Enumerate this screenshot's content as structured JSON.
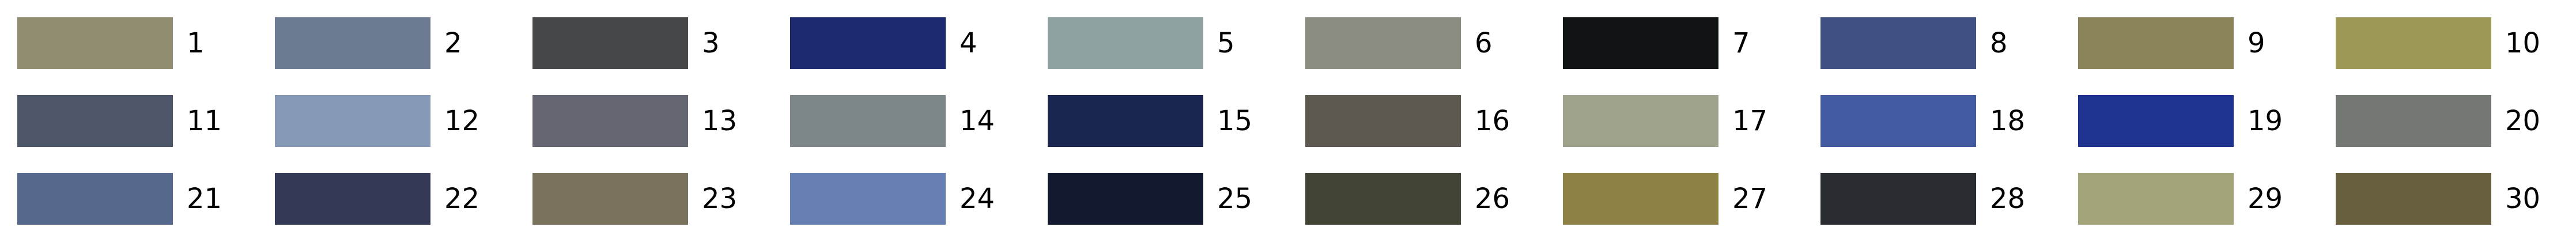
{
  "swatches": [
    {
      "label": "1",
      "color": "#908d70"
    },
    {
      "label": "2",
      "color": "#6c7a92"
    },
    {
      "label": "3",
      "color": "#464749"
    },
    {
      "label": "4",
      "color": "#1c2b6f"
    },
    {
      "label": "5",
      "color": "#8fa0a1"
    },
    {
      "label": "6",
      "color": "#8c8d81"
    },
    {
      "label": "7",
      "color": "#101415"
    },
    {
      "label": "8",
      "color": "#3f5082"
    },
    {
      "label": "9",
      "color": "#8b845b"
    },
    {
      "label": "10",
      "color": "#9e9856"
    },
    {
      "label": "11",
      "color": "#4c5668"
    },
    {
      "label": "12",
      "color": "#869ab7"
    },
    {
      "label": "13",
      "color": "#646671"
    },
    {
      "label": "14",
      "color": "#7d8688"
    },
    {
      "label": "15",
      "color": "#1b2650"
    },
    {
      "label": "16",
      "color": "#5e5950"
    },
    {
      "label": "17",
      "color": "#9fa38b"
    },
    {
      "label": "18",
      "color": "#435ba3"
    },
    {
      "label": "19",
      "color": "#1e3290"
    },
    {
      "label": "20",
      "color": "#747873"
    },
    {
      "label": "21",
      "color": "#56698c"
    },
    {
      "label": "22",
      "color": "#343a55"
    },
    {
      "label": "23",
      "color": "#79735e"
    },
    {
      "label": "24",
      "color": "#657fb2"
    },
    {
      "label": "25",
      "color": "#131a30"
    },
    {
      "label": "26",
      "color": "#414335"
    },
    {
      "label": "27",
      "color": "#8d8145"
    },
    {
      "label": "28",
      "color": "#292d31"
    },
    {
      "label": "29",
      "color": "#a3a479"
    },
    {
      "label": "30",
      "color": "#685f3f"
    }
  ]
}
